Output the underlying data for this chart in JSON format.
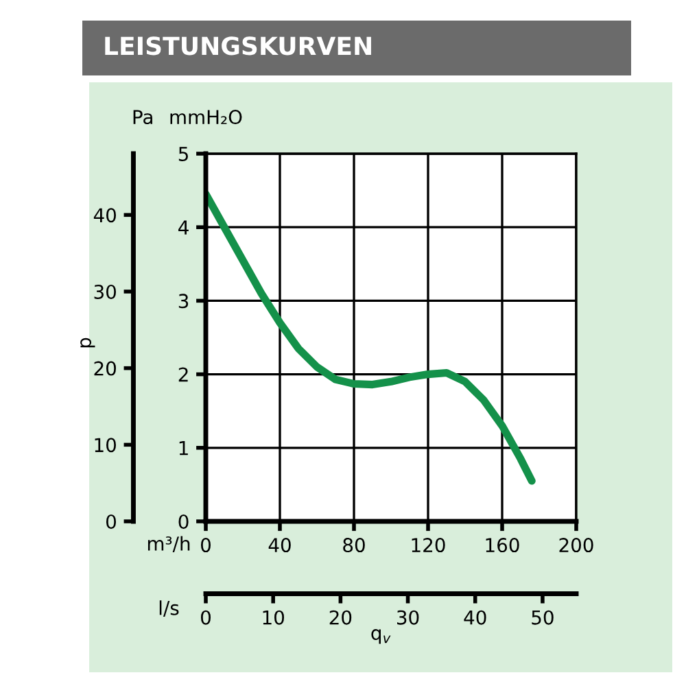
{
  "chart_data": {
    "type": "line",
    "title": "LEISTUNGSKURVEN",
    "xlabel": "m³/h",
    "ylabel": "mmH₂O",
    "y2label": "Pa",
    "x2label": "l/s",
    "annotations": [
      "p",
      "q$_{v}$"
    ],
    "x": [
      0,
      10,
      20,
      30,
      40,
      50,
      60,
      70,
      80,
      90,
      100,
      110,
      120,
      130,
      140,
      150,
      160,
      170,
      176
    ],
    "series": [
      {
        "color": "#14914a",
        "values": [
          4.45,
          4.0,
          3.55,
          3.1,
          2.7,
          2.35,
          2.1,
          1.93,
          1.87,
          1.86,
          1.9,
          1.96,
          2.0,
          2.02,
          1.9,
          1.65,
          1.3,
          0.85,
          0.55
        ]
      }
    ],
    "xlim": [
      0,
      200
    ],
    "xticks": [
      0,
      40,
      80,
      120,
      160,
      200
    ],
    "ylim": [
      0,
      5
    ],
    "yticks": [
      0,
      1,
      2,
      3,
      4,
      5
    ],
    "y2lim": [
      0,
      48
    ],
    "y2ticks": [
      0,
      10,
      20,
      30,
      40
    ],
    "x2lim": [
      0,
      55
    ],
    "x2ticks": [
      0,
      10,
      20,
      30,
      40,
      50
    ],
    "grid": true,
    "legend": false
  }
}
